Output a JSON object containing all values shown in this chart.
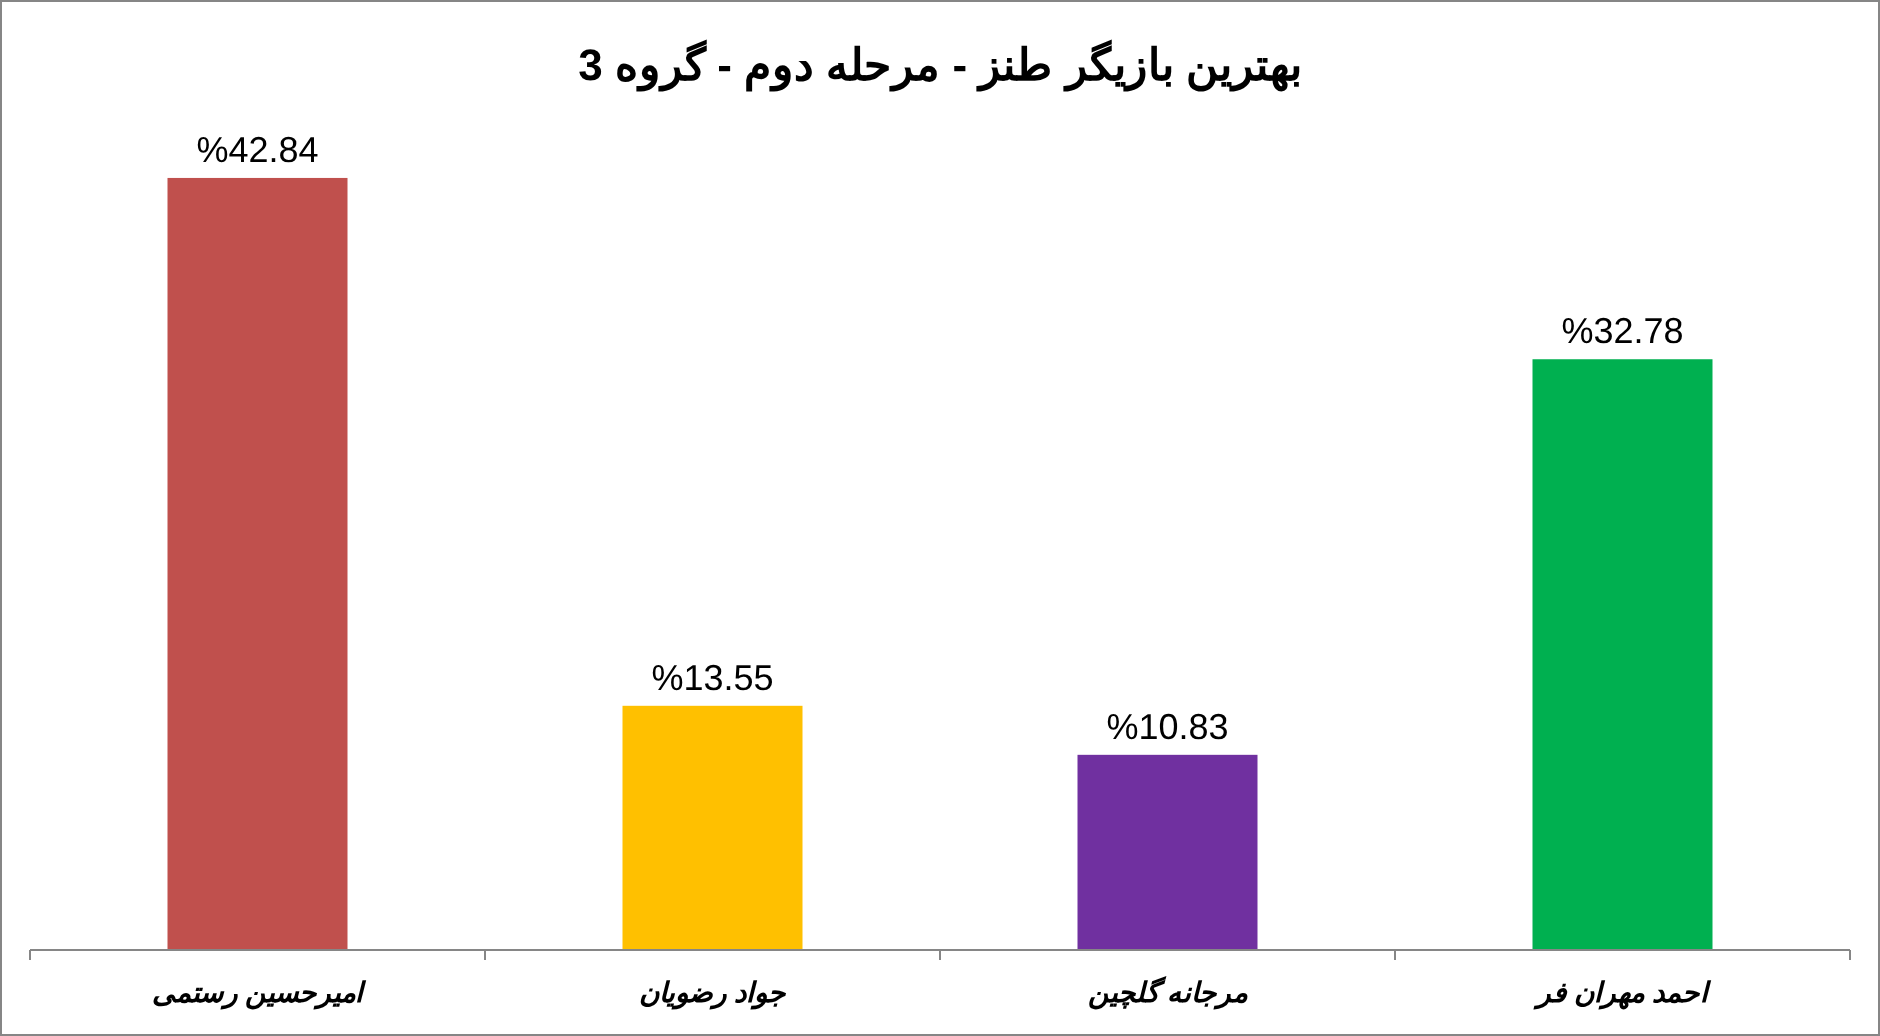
{
  "chart_data": {
    "type": "bar",
    "title": "بهترین بازیگر طنز - مرحله دوم - گروه 3",
    "categories": [
      "امیرحسین رستمی",
      "جواد رضویان",
      "مرجانه گلچین",
      "احمد مهران فر"
    ],
    "values": [
      42.84,
      13.55,
      10.83,
      32.78
    ],
    "colors": [
      "#c0504d",
      "#ffc000",
      "#7030a0",
      "#00b050"
    ],
    "value_labels": [
      "%42.84",
      "%13.55",
      "%10.83",
      "%32.78"
    ],
    "tick_labels": "x"
  }
}
